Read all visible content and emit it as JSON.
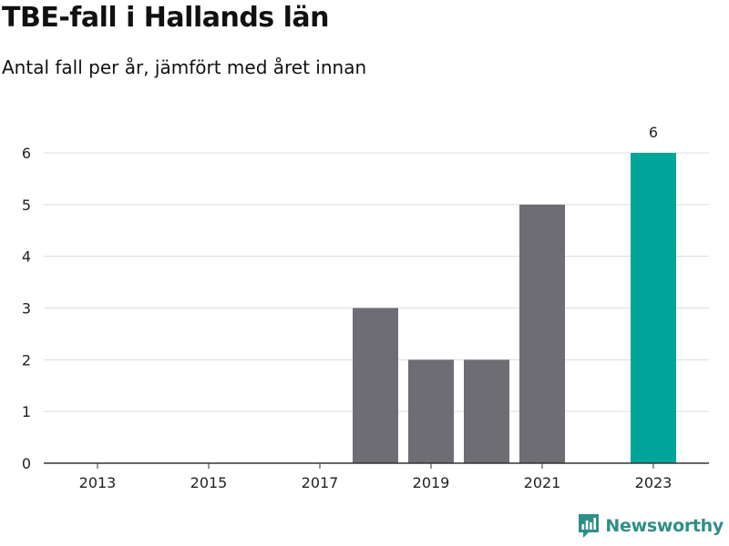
{
  "title": "TBE-fall i Hallands län",
  "subtitle": "Antal fall per år, jämfört med året innan",
  "brand": {
    "name": "Newsworthy",
    "color": "#2f8f86"
  },
  "colors": {
    "bar": "#6e6d74",
    "highlight": "#00a59a",
    "grid": "#dcdcdc",
    "axis": "#333333"
  },
  "chart_data": {
    "type": "bar",
    "categories": [
      "2013",
      "2014",
      "2015",
      "2016",
      "2017",
      "2018",
      "2019",
      "2020",
      "2021",
      "2022",
      "2023"
    ],
    "values": [
      0,
      0,
      0,
      0,
      0,
      3,
      2,
      2,
      5,
      0,
      6
    ],
    "highlight_category": "2023",
    "data_labels": [
      {
        "category": "2023",
        "text": "6"
      }
    ],
    "x_tick_labels": [
      "2013",
      "2015",
      "2017",
      "2019",
      "2021",
      "2023"
    ],
    "y_ticks": [
      0,
      1,
      2,
      3,
      4,
      5,
      6
    ],
    "ylim": [
      0,
      6
    ],
    "xlabel": "",
    "ylabel": "",
    "grid": true
  }
}
